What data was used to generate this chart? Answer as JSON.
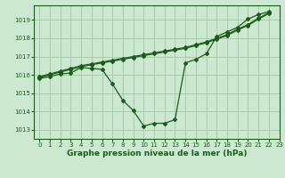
{
  "background_color": "#cce8d0",
  "grid_color": "#aaccaa",
  "line_color": "#1a5c1a",
  "marker_color": "#1a5c1a",
  "xlabel": "Graphe pression niveau de la mer (hPa)",
  "xlim": [
    -0.5,
    23
  ],
  "ylim": [
    1012.5,
    1019.8
  ],
  "yticks": [
    1013,
    1014,
    1015,
    1016,
    1017,
    1018,
    1019
  ],
  "xticks": [
    0,
    1,
    2,
    3,
    4,
    5,
    6,
    7,
    8,
    9,
    10,
    11,
    12,
    13,
    14,
    15,
    16,
    17,
    18,
    19,
    20,
    21,
    22,
    23
  ],
  "x_main": [
    0,
    1,
    2,
    3,
    4,
    5,
    6,
    7,
    8,
    9,
    10,
    11,
    12,
    13,
    14,
    15,
    16,
    17,
    18,
    19,
    20,
    21,
    22
  ],
  "y_main": [
    1015.8,
    1015.9,
    1016.05,
    1016.1,
    1016.4,
    1016.35,
    1016.3,
    1015.5,
    1014.6,
    1014.05,
    1013.2,
    1013.35,
    1013.35,
    1013.55,
    1016.65,
    1016.85,
    1017.15,
    1018.1,
    1018.35,
    1018.6,
    1019.05,
    1019.3,
    1019.45
  ],
  "x_upper1": [
    0,
    1,
    2,
    3,
    4,
    5,
    6,
    7,
    8,
    9,
    10,
    11,
    12,
    13,
    14,
    15,
    16,
    17,
    18,
    19,
    20,
    21,
    22
  ],
  "y_upper1": [
    1015.9,
    1016.05,
    1016.2,
    1016.35,
    1016.5,
    1016.6,
    1016.7,
    1016.8,
    1016.9,
    1017.0,
    1017.1,
    1017.2,
    1017.3,
    1017.4,
    1017.5,
    1017.65,
    1017.8,
    1018.0,
    1018.2,
    1018.5,
    1018.75,
    1019.1,
    1019.4
  ],
  "x_upper2": [
    0,
    1,
    2,
    3,
    4,
    5,
    6,
    7,
    8,
    9,
    10,
    11,
    12,
    13,
    14,
    15,
    16,
    17,
    18,
    19,
    20,
    21,
    22
  ],
  "y_upper2": [
    1015.85,
    1016.0,
    1016.15,
    1016.3,
    1016.45,
    1016.55,
    1016.65,
    1016.75,
    1016.85,
    1016.95,
    1017.05,
    1017.15,
    1017.25,
    1017.35,
    1017.45,
    1017.6,
    1017.75,
    1017.95,
    1018.15,
    1018.45,
    1018.7,
    1019.05,
    1019.35
  ]
}
